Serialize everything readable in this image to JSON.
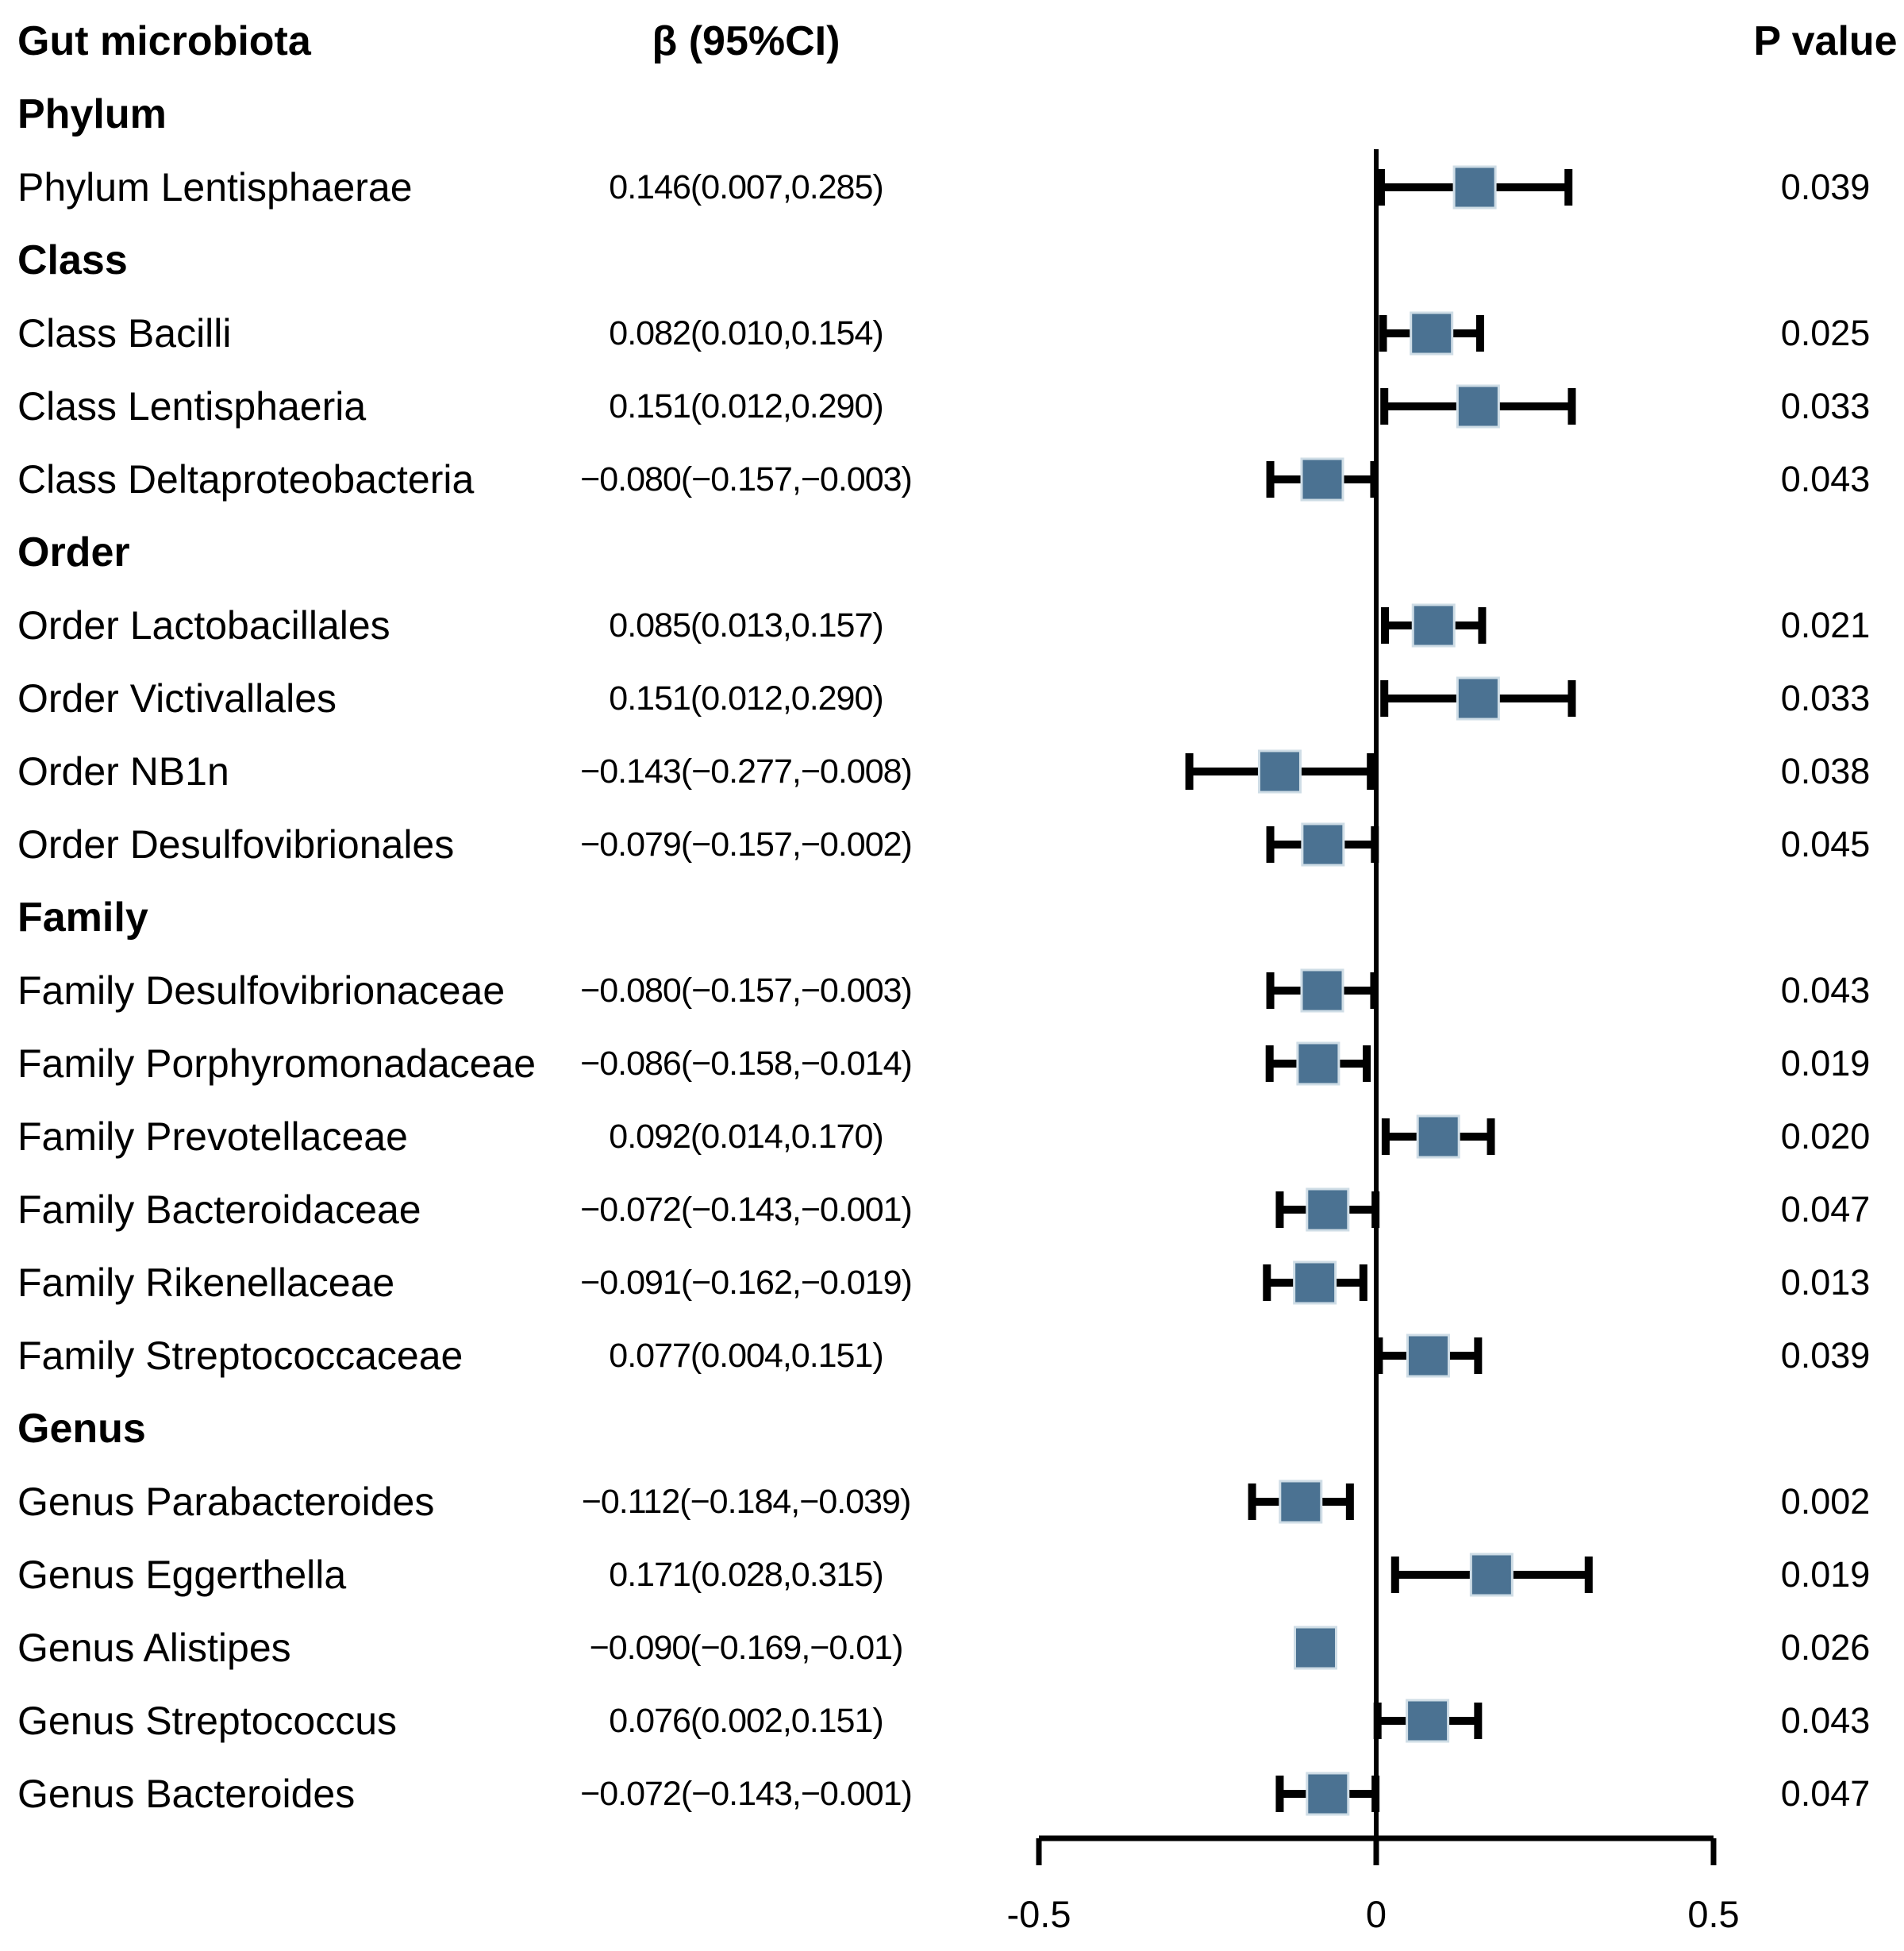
{
  "header": {
    "gut_microbiota": "Gut microbiota",
    "beta_ci": "β (95%CI)",
    "p_value": "P value"
  },
  "colors": {
    "background": "#ffffff",
    "text": "#000000",
    "line": "#000000",
    "marker_fill": "#4b7292",
    "marker_stroke": "#cfdde6"
  },
  "chart_data": {
    "type": "forest",
    "x_axis": {
      "ticks": [
        -0.5,
        0,
        0.5
      ],
      "tick_labels": [
        "-0.5",
        "0",
        "0.5"
      ],
      "zero_line": 0,
      "xlim": [
        -0.5,
        0.5
      ]
    },
    "rows": [
      {
        "kind": "section",
        "label": "Phylum"
      },
      {
        "kind": "item",
        "label": "Phylum Lentisphaerae",
        "beta": 0.146,
        "ci_low": 0.007,
        "ci_high": 0.285,
        "beta_text": "0.146(0.007,0.285)",
        "p": "0.039",
        "whiskers": true
      },
      {
        "kind": "section",
        "label": "Class"
      },
      {
        "kind": "item",
        "label": "Class Bacilli",
        "beta": 0.082,
        "ci_low": 0.01,
        "ci_high": 0.154,
        "beta_text": "0.082(0.010,0.154)",
        "p": "0.025",
        "whiskers": true
      },
      {
        "kind": "item",
        "label": "Class Lentisphaeria",
        "beta": 0.151,
        "ci_low": 0.012,
        "ci_high": 0.29,
        "beta_text": "0.151(0.012,0.290)",
        "p": "0.033",
        "whiskers": true
      },
      {
        "kind": "item",
        "label": "Class Deltaproteobacteria",
        "beta": -0.08,
        "ci_low": -0.157,
        "ci_high": -0.003,
        "beta_text": "−0.080(−0.157,−0.003)",
        "p": "0.043",
        "whiskers": true
      },
      {
        "kind": "section",
        "label": "Order"
      },
      {
        "kind": "item",
        "label": "Order Lactobacillales",
        "beta": 0.085,
        "ci_low": 0.013,
        "ci_high": 0.157,
        "beta_text": "0.085(0.013,0.157)",
        "p": "0.021",
        "whiskers": true
      },
      {
        "kind": "item",
        "label": "Order Victivallales",
        "beta": 0.151,
        "ci_low": 0.012,
        "ci_high": 0.29,
        "beta_text": "0.151(0.012,0.290)",
        "p": "0.033",
        "whiskers": true
      },
      {
        "kind": "item",
        "label": "Order NB1n",
        "beta": -0.143,
        "ci_low": -0.277,
        "ci_high": -0.008,
        "beta_text": "−0.143(−0.277,−0.008)",
        "p": "0.038",
        "whiskers": true
      },
      {
        "kind": "item",
        "label": "Order Desulfovibrionales",
        "beta": -0.079,
        "ci_low": -0.157,
        "ci_high": -0.002,
        "beta_text": "−0.079(−0.157,−0.002)",
        "p": "0.045",
        "whiskers": true
      },
      {
        "kind": "section",
        "label": "Family"
      },
      {
        "kind": "item",
        "label": "Family Desulfovibrionaceae",
        "beta": -0.08,
        "ci_low": -0.157,
        "ci_high": -0.003,
        "beta_text": "−0.080(−0.157,−0.003)",
        "p": "0.043",
        "whiskers": true
      },
      {
        "kind": "item",
        "label": "Family Porphyromonadaceae",
        "beta": -0.086,
        "ci_low": -0.158,
        "ci_high": -0.014,
        "beta_text": "−0.086(−0.158,−0.014)",
        "p": "0.019",
        "whiskers": true
      },
      {
        "kind": "item",
        "label": "Family Prevotellaceae",
        "beta": 0.092,
        "ci_low": 0.014,
        "ci_high": 0.17,
        "beta_text": "0.092(0.014,0.170)",
        "p": "0.020",
        "whiskers": true
      },
      {
        "kind": "item",
        "label": "Family Bacteroidaceae",
        "beta": -0.072,
        "ci_low": -0.143,
        "ci_high": -0.001,
        "beta_text": "−0.072(−0.143,−0.001)",
        "p": "0.047",
        "whiskers": true
      },
      {
        "kind": "item",
        "label": "Family Rikenellaceae",
        "beta": -0.091,
        "ci_low": -0.162,
        "ci_high": -0.019,
        "beta_text": "−0.091(−0.162,−0.019)",
        "p": "0.013",
        "whiskers": true
      },
      {
        "kind": "item",
        "label": "Family Streptococcaceae",
        "beta": 0.077,
        "ci_low": 0.004,
        "ci_high": 0.151,
        "beta_text": "0.077(0.004,0.151)",
        "p": "0.039",
        "whiskers": true
      },
      {
        "kind": "section",
        "label": "Genus"
      },
      {
        "kind": "item",
        "label": "Genus Parabacteroides",
        "beta": -0.112,
        "ci_low": -0.184,
        "ci_high": -0.039,
        "beta_text": "−0.112(−0.184,−0.039)",
        "p": "0.002",
        "whiskers": true
      },
      {
        "kind": "item",
        "label": "Genus Eggerthella",
        "beta": 0.171,
        "ci_low": 0.028,
        "ci_high": 0.315,
        "beta_text": "0.171(0.028,0.315)",
        "p": "0.019",
        "whiskers": true
      },
      {
        "kind": "item",
        "label": "Genus Alistipes",
        "beta": -0.09,
        "ci_low": -0.169,
        "ci_high": -0.01,
        "beta_text": "−0.090(−0.169,−0.01)",
        "p": "0.026",
        "whiskers": false
      },
      {
        "kind": "item",
        "label": "Genus Streptococcus",
        "beta": 0.076,
        "ci_low": 0.002,
        "ci_high": 0.151,
        "beta_text": "0.076(0.002,0.151)",
        "p": "0.043",
        "whiskers": true
      },
      {
        "kind": "item",
        "label": "Genus Bacteroides",
        "beta": -0.072,
        "ci_low": -0.143,
        "ci_high": -0.001,
        "beta_text": "−0.072(−0.143,−0.001)",
        "p": "0.047",
        "whiskers": true
      }
    ]
  }
}
